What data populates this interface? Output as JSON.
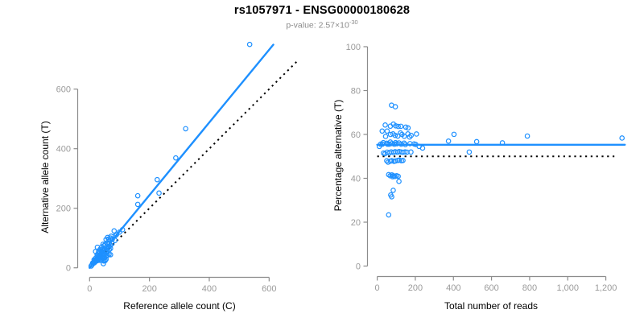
{
  "chart_data": {
    "type": "scatter",
    "title": "rs1057971 - ENSG00000180628",
    "subtitle": {
      "prefix": "p-value: 2.57×10",
      "exponent": "-30"
    },
    "colors": {
      "points": "#1e90ff",
      "fit_line": "#1e90ff",
      "reference_line": "#000000",
      "axis": "#8c8c8c",
      "tick_labels": "#9a9a9a",
      "title": "#000000",
      "subtitle": "#8c8c8c"
    },
    "points_ref_alt_counts": [
      [
        535,
        750
      ],
      [
        321,
        467
      ],
      [
        288,
        369
      ],
      [
        226,
        296
      ],
      [
        232,
        251
      ],
      [
        161,
        242
      ],
      [
        161,
        213
      ],
      [
        20,
        55
      ],
      [
        26,
        69
      ],
      [
        15,
        27
      ],
      [
        30,
        55
      ],
      [
        35,
        62
      ],
      [
        45,
        79
      ],
      [
        55,
        95
      ],
      [
        25,
        44
      ],
      [
        40,
        70
      ],
      [
        60,
        102
      ],
      [
        10,
        16
      ],
      [
        20,
        32
      ],
      [
        33,
        50
      ],
      [
        48,
        74
      ],
      [
        64,
        97
      ],
      [
        72,
        106
      ],
      [
        82,
        124
      ],
      [
        28,
        42
      ],
      [
        52,
        78
      ],
      [
        38,
        56
      ],
      [
        44,
        64
      ],
      [
        58,
        84
      ],
      [
        18,
        26
      ],
      [
        70,
        100
      ],
      [
        22,
        28
      ],
      [
        30,
        39
      ],
      [
        42,
        54
      ],
      [
        50,
        64
      ],
      [
        62,
        79
      ],
      [
        76,
        96
      ],
      [
        86,
        108
      ],
      [
        34,
        43
      ],
      [
        46,
        58
      ],
      [
        56,
        70
      ],
      [
        66,
        82
      ],
      [
        24,
        30
      ],
      [
        40,
        50
      ],
      [
        90,
        112
      ],
      [
        12,
        15
      ],
      [
        28,
        35
      ],
      [
        100,
        120
      ],
      [
        110,
        128
      ],
      [
        8,
        10
      ],
      [
        5,
        6
      ],
      [
        14,
        18
      ],
      [
        25,
        27
      ],
      [
        35,
        38
      ],
      [
        45,
        49
      ],
      [
        55,
        60
      ],
      [
        65,
        70
      ],
      [
        75,
        81
      ],
      [
        85,
        92
      ],
      [
        31,
        33
      ],
      [
        41,
        44
      ],
      [
        51,
        55
      ],
      [
        20,
        21
      ],
      [
        60,
        65
      ],
      [
        70,
        76
      ],
      [
        16,
        17
      ],
      [
        30,
        27
      ],
      [
        40,
        37
      ],
      [
        50,
        46
      ],
      [
        60,
        56
      ],
      [
        70,
        65
      ],
      [
        36,
        33
      ],
      [
        46,
        42
      ],
      [
        56,
        52
      ],
      [
        26,
        24
      ],
      [
        66,
        61
      ],
      [
        35,
        25
      ],
      [
        45,
        32
      ],
      [
        55,
        38
      ],
      [
        40,
        28
      ],
      [
        50,
        35
      ],
      [
        60,
        42
      ],
      [
        48,
        33
      ],
      [
        65,
        45
      ],
      [
        70,
        44
      ],
      [
        52,
        24
      ],
      [
        48,
        23
      ],
      [
        55,
        29
      ],
      [
        46,
        14
      ]
    ],
    "left_plot": {
      "xlabel": "Reference allele count (C)",
      "ylabel": "Alternative allele count (T)",
      "x_tick_values": [
        0,
        200,
        400,
        600
      ],
      "x_tick_labels": [
        "0",
        "200",
        "400",
        "600"
      ],
      "y_tick_values": [
        0,
        200,
        400,
        600
      ],
      "y_tick_labels": [
        "0",
        "200",
        "400",
        "600"
      ],
      "xlim": [
        0,
        620
      ],
      "ylim": [
        0,
        760
      ],
      "fit_line": {
        "slope": 1.22,
        "intercept": 0,
        "x_start": 0,
        "x_end": 614
      },
      "identity_line": {
        "x_start": 0,
        "x_end": 700
      }
    },
    "right_plot": {
      "xlabel": "Total number of reads",
      "ylabel": "Percentage alternative (T)",
      "x_tick_values": [
        0,
        200,
        400,
        600,
        800,
        1000,
        1200
      ],
      "x_tick_labels": [
        "0",
        "200",
        "400",
        "600",
        "800",
        "1,000",
        "1,200"
      ],
      "y_tick_values": [
        0,
        20,
        40,
        60,
        80,
        100
      ],
      "y_tick_labels": [
        "0",
        "20",
        "40",
        "60",
        "80",
        "100"
      ],
      "xlim": [
        0,
        1300
      ],
      "ylim": [
        0,
        100
      ],
      "mean_percentage_line": {
        "value": 55.3,
        "x_start": 0,
        "x_end": 1300
      },
      "reference_percentage_line": {
        "value": 50,
        "x_start": 0,
        "x_end": 1260
      }
    }
  }
}
